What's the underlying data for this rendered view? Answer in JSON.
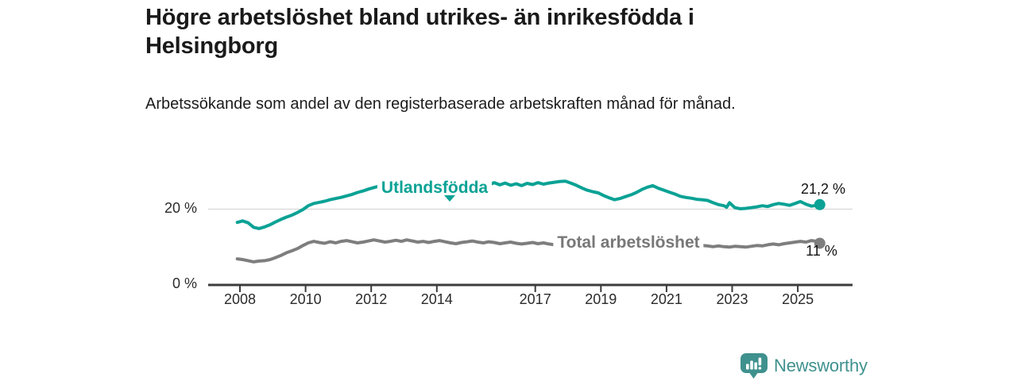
{
  "header": {
    "title": "Högre arbetslöshet bland utrikes- än inrikesfödda i Helsingborg",
    "subtitle": "Arbetssökande som andel av den registerbaserade arbetskraften månad för månad."
  },
  "chart_data": {
    "type": "line",
    "title": "Högre arbetslöshet bland utrikes- än inrikesfödda i Helsingborg",
    "subtitle": "Arbetssökande som andel av den registerbaserade arbetskraften månad för månad.",
    "unit": "%",
    "ylim": [
      0,
      29
    ],
    "yticks": [
      {
        "value": 0,
        "label": "0 %"
      },
      {
        "value": 20,
        "label": "20 %"
      }
    ],
    "xticks": [
      2008,
      2010,
      2012,
      2014,
      2017,
      2019,
      2021,
      2023,
      2025
    ],
    "grid": "single horizontal gridline at 20 %",
    "legend_position": "inline labels on the lines",
    "colors": {
      "utlandsfodda": "#0ba295",
      "total": "#7e7e7e"
    },
    "series": [
      {
        "name": "Utlandsfödda",
        "color": "#0ba295",
        "end_label": "21,2 %",
        "end_value": 21.2,
        "x": [
          2007.92,
          2008.08,
          2008.25,
          2008.42,
          2008.58,
          2008.75,
          2008.92,
          2009.08,
          2009.25,
          2009.42,
          2009.58,
          2009.75,
          2009.92,
          2010.08,
          2010.25,
          2010.42,
          2010.58,
          2010.75,
          2010.92,
          2011.08,
          2011.25,
          2011.42,
          2011.58,
          2011.75,
          2011.92,
          2012.08,
          2012.25,
          2012.42,
          2012.58,
          2012.75,
          2012.92,
          2013.08,
          2013.25,
          2013.42,
          2013.58,
          2013.75,
          2013.92,
          2014.08,
          2014.25,
          2014.42,
          2014.58,
          2014.75,
          2014.92,
          2015.08,
          2015.25,
          2015.42,
          2015.58,
          2015.75,
          2015.92,
          2016.08,
          2016.25,
          2016.42,
          2016.58,
          2016.75,
          2016.92,
          2017.08,
          2017.25,
          2017.42,
          2017.58,
          2017.75,
          2017.92,
          2018.08,
          2018.25,
          2018.42,
          2018.58,
          2018.75,
          2018.92,
          2019.08,
          2019.25,
          2019.42,
          2019.58,
          2019.75,
          2019.92,
          2020.08,
          2020.25,
          2020.42,
          2020.58,
          2020.75,
          2020.92,
          2021.08,
          2021.25,
          2021.42,
          2021.58,
          2021.75,
          2021.92,
          2022.08,
          2022.25,
          2022.42,
          2022.58,
          2022.75,
          2022.83,
          2022.92,
          2023.08,
          2023.25,
          2023.42,
          2023.58,
          2023.75,
          2023.92,
          2024.08,
          2024.25,
          2024.42,
          2024.58,
          2024.75,
          2024.92,
          2025.08,
          2025.25,
          2025.42,
          2025.58,
          2025.67
        ],
        "values": [
          16.5,
          16.9,
          16.4,
          15.2,
          14.9,
          15.3,
          15.9,
          16.6,
          17.3,
          17.9,
          18.4,
          19.1,
          19.9,
          20.9,
          21.5,
          21.8,
          22.1,
          22.5,
          22.8,
          23.1,
          23.5,
          23.9,
          24.4,
          24.8,
          25.3,
          25.7,
          26.1,
          25.8,
          26.0,
          25.7,
          26.0,
          26.2,
          25.9,
          26.1,
          25.8,
          26.0,
          26.3,
          26.0,
          26.2,
          26.4,
          26.1,
          26.3,
          26.0,
          26.2,
          26.5,
          26.2,
          26.4,
          27.0,
          26.4,
          26.9,
          26.3,
          26.7,
          26.2,
          26.8,
          26.5,
          27.0,
          26.6,
          26.9,
          27.1,
          27.3,
          27.4,
          26.9,
          26.3,
          25.6,
          25.0,
          24.6,
          24.3,
          23.6,
          23.0,
          22.5,
          22.8,
          23.3,
          23.8,
          24.4,
          25.2,
          25.8,
          26.2,
          25.5,
          25.0,
          24.5,
          24.0,
          23.4,
          23.1,
          22.9,
          22.6,
          22.5,
          22.3,
          21.7,
          21.2,
          20.9,
          20.5,
          21.7,
          20.4,
          20.1,
          20.2,
          20.4,
          20.6,
          20.9,
          20.7,
          21.2,
          21.5,
          21.3,
          21.0,
          21.5,
          22.0,
          21.3,
          20.8,
          21.0,
          21.2
        ]
      },
      {
        "name": "Total arbetslöshet",
        "color": "#7e7e7e",
        "end_label": "11 %",
        "end_value": 11.0,
        "x": [
          2007.92,
          2008.08,
          2008.25,
          2008.42,
          2008.58,
          2008.75,
          2008.92,
          2009.08,
          2009.25,
          2009.42,
          2009.58,
          2009.75,
          2009.92,
          2010.08,
          2010.25,
          2010.42,
          2010.58,
          2010.75,
          2010.92,
          2011.08,
          2011.25,
          2011.42,
          2011.58,
          2011.75,
          2011.92,
          2012.08,
          2012.25,
          2012.42,
          2012.58,
          2012.75,
          2012.92,
          2013.08,
          2013.25,
          2013.42,
          2013.58,
          2013.75,
          2013.92,
          2014.08,
          2014.25,
          2014.42,
          2014.58,
          2014.75,
          2014.92,
          2015.08,
          2015.25,
          2015.42,
          2015.58,
          2015.75,
          2015.92,
          2016.08,
          2016.25,
          2016.42,
          2016.58,
          2016.75,
          2016.92,
          2017.08,
          2017.25,
          2017.42,
          2017.58,
          2017.75,
          2017.92,
          2018.08,
          2018.25,
          2018.42,
          2018.58,
          2018.75,
          2018.92,
          2019.08,
          2019.25,
          2019.42,
          2019.58,
          2019.75,
          2019.92,
          2020.08,
          2020.25,
          2020.42,
          2020.58,
          2020.75,
          2020.92,
          2021.08,
          2021.25,
          2021.42,
          2021.58,
          2021.75,
          2021.92,
          2022.08,
          2022.25,
          2022.42,
          2022.58,
          2022.75,
          2022.92,
          2023.08,
          2023.25,
          2023.42,
          2023.58,
          2023.75,
          2023.92,
          2024.08,
          2024.25,
          2024.42,
          2024.58,
          2024.75,
          2024.92,
          2025.08,
          2025.25,
          2025.42,
          2025.58,
          2025.67
        ],
        "values": [
          6.9,
          6.7,
          6.4,
          6.1,
          6.3,
          6.4,
          6.7,
          7.2,
          7.8,
          8.5,
          9.0,
          9.6,
          10.4,
          11.1,
          11.5,
          11.2,
          11.0,
          11.4,
          11.1,
          11.5,
          11.7,
          11.4,
          11.1,
          11.3,
          11.6,
          11.9,
          11.6,
          11.3,
          11.5,
          11.8,
          11.5,
          11.9,
          11.6,
          11.3,
          11.5,
          11.2,
          11.5,
          11.7,
          11.4,
          11.1,
          10.9,
          11.2,
          11.4,
          11.6,
          11.3,
          11.1,
          11.4,
          11.2,
          10.9,
          11.1,
          11.3,
          11.0,
          10.8,
          11.0,
          11.2,
          10.9,
          11.1,
          10.8,
          10.6,
          10.4,
          10.6,
          10.8,
          10.5,
          10.3,
          10.6,
          10.8,
          10.5,
          10.7,
          10.9,
          11.1,
          10.9,
          11.2,
          11.4,
          11.7,
          12.0,
          11.8,
          11.6,
          11.8,
          11.5,
          11.7,
          11.4,
          11.1,
          10.9,
          10.7,
          10.5,
          10.4,
          10.3,
          10.1,
          10.3,
          10.1,
          10.0,
          10.2,
          10.1,
          10.0,
          10.2,
          10.4,
          10.3,
          10.6,
          10.8,
          10.6,
          10.9,
          11.1,
          11.3,
          11.5,
          11.3,
          11.7,
          11.5,
          11.0
        ]
      }
    ]
  },
  "footer": {
    "brand": "Newsworthy",
    "brand_color": "#3f918e",
    "logo_icon": "newsworthy-speech-bubble-bar-chart-icon"
  }
}
